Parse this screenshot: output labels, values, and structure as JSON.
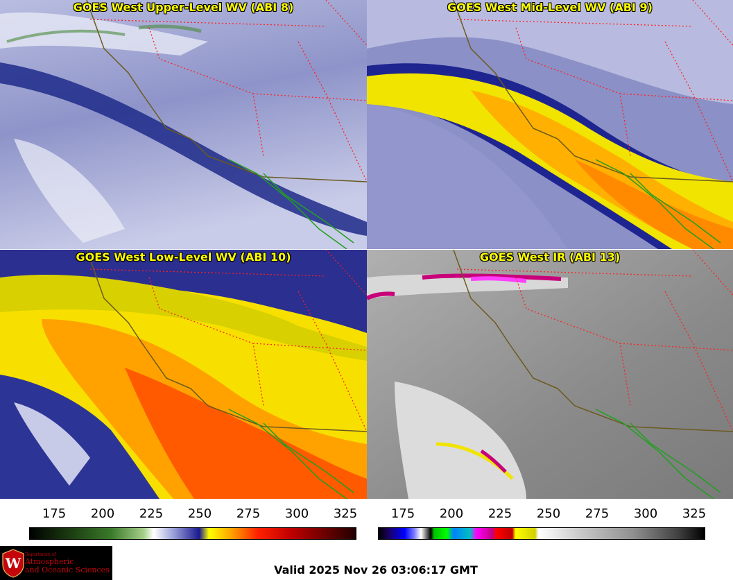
{
  "panels": [
    {
      "title": "GOES West Upper-Level WV (ABI 8)"
    },
    {
      "title": "GOES West Mid-Level WV (ABI 9)"
    },
    {
      "title": "GOES West Low-Level WV (ABI 10)"
    },
    {
      "title": "GOES West IR (ABI 13)"
    }
  ],
  "colorbars": {
    "wv": {
      "ticks": [
        "175",
        "200",
        "225",
        "250",
        "275",
        "300",
        "325"
      ]
    },
    "ir": {
      "ticks": [
        "175",
        "200",
        "225",
        "250",
        "275",
        "300",
        "325"
      ]
    }
  },
  "logo": {
    "line1": "Department of",
    "line2": "Atmospheric",
    "line3": "and Oceanic Sciences",
    "emblem": "W"
  },
  "footer": {
    "valid": "Valid 2025 Nov 26 03:06:17 GMT"
  },
  "colors": {
    "title": "#ffff00",
    "state_border": "#ff2020",
    "coast": "#6b5a1e",
    "mexico": "#20a020"
  }
}
